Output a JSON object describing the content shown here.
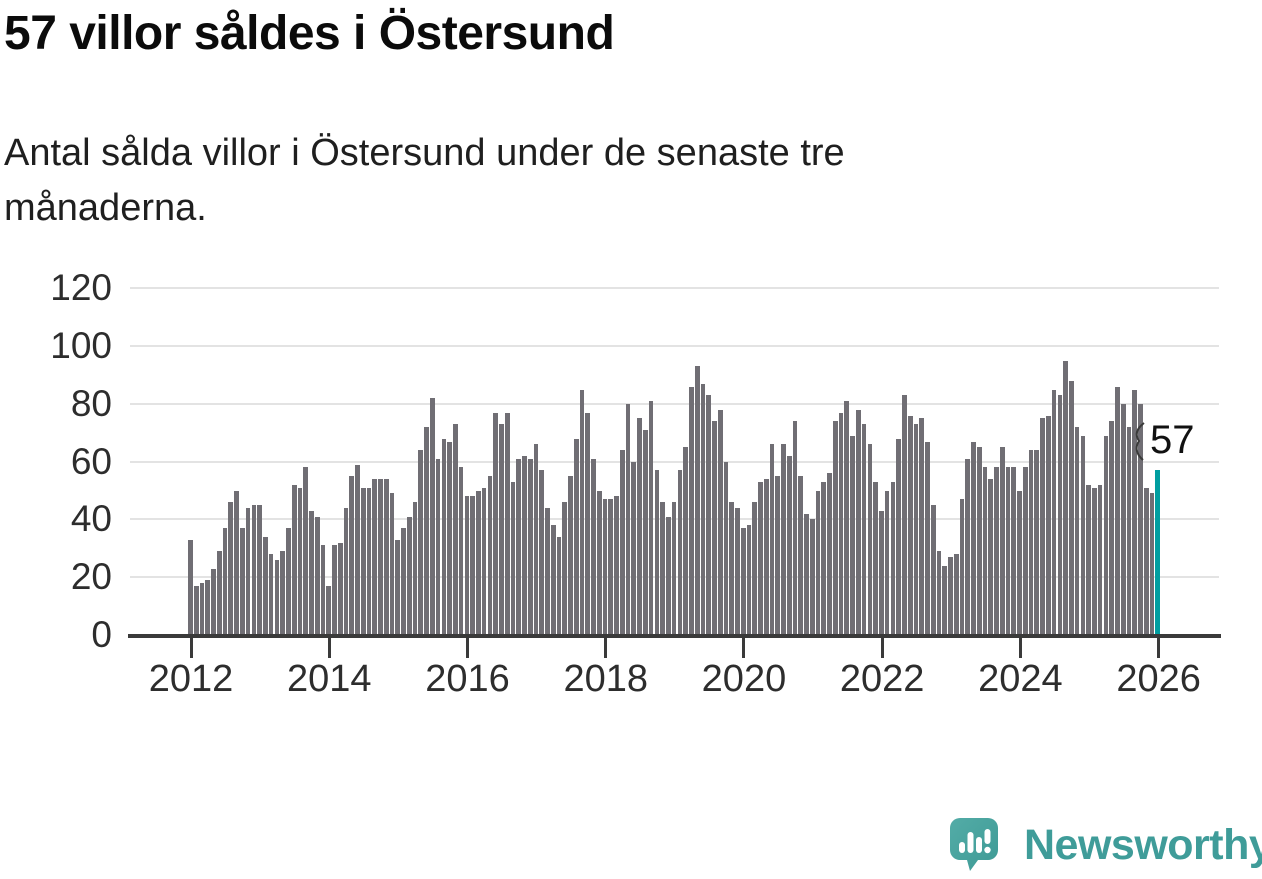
{
  "header": {
    "title": "57 villor såldes i Östersund",
    "subtitle_line1": "Antal sålda villor i Östersund under de senaste tre",
    "subtitle_line2": "månaderna."
  },
  "chart_data": {
    "type": "bar",
    "title": "57 villor såldes i Östersund",
    "xlabel": "",
    "ylabel": "",
    "x_start": "2012-01",
    "x_freq": "monthly",
    "values": [
      33,
      17,
      18,
      19,
      23,
      29,
      37,
      46,
      50,
      37,
      44,
      45,
      45,
      34,
      28,
      26,
      29,
      37,
      52,
      51,
      58,
      43,
      41,
      31,
      17,
      31,
      32,
      44,
      55,
      59,
      51,
      51,
      54,
      54,
      54,
      49,
      33,
      37,
      41,
      46,
      64,
      72,
      82,
      61,
      68,
      67,
      73,
      58,
      48,
      48,
      50,
      51,
      55,
      77,
      73,
      77,
      53,
      61,
      62,
      61,
      66,
      57,
      44,
      38,
      34,
      46,
      55,
      68,
      85,
      77,
      61,
      50,
      47,
      47,
      48,
      64,
      80,
      60,
      75,
      71,
      81,
      57,
      46,
      41,
      46,
      57,
      65,
      86,
      93,
      87,
      83,
      74,
      78,
      60,
      46,
      44,
      37,
      38,
      46,
      53,
      54,
      66,
      55,
      66,
      62,
      74,
      55,
      42,
      40,
      50,
      53,
      56,
      74,
      77,
      81,
      69,
      78,
      73,
      66,
      53,
      43,
      50,
      53,
      68,
      83,
      76,
      73,
      75,
      67,
      45,
      29,
      24,
      27,
      28,
      47,
      61,
      67,
      65,
      58,
      54,
      58,
      65,
      58,
      58,
      50,
      58,
      64,
      64,
      75,
      76,
      85,
      83,
      95,
      88,
      72,
      69,
      52,
      51,
      52,
      69,
      74,
      86,
      80,
      72,
      85,
      80,
      51,
      49,
      57
    ],
    "highlight_last": true,
    "annotation": {
      "label": "57"
    },
    "ylim": [
      0,
      120
    ],
    "yticks": [
      0,
      20,
      40,
      60,
      80,
      100,
      120
    ],
    "xtick_labels": [
      "2012",
      "2014",
      "2016",
      "2018",
      "2020",
      "2022",
      "2024",
      "2026"
    ],
    "grid": true,
    "legend_position": "none",
    "bar_color": "#706e74",
    "highlight_color": "#009ea0",
    "gridline_color": "#e3e3e3",
    "axis_color": "#3a3a3a"
  },
  "footer": {
    "logo_text": "Newsworthy",
    "logo_color": "#3f9c99",
    "logo_bubble_color": "#4aa6a1"
  }
}
